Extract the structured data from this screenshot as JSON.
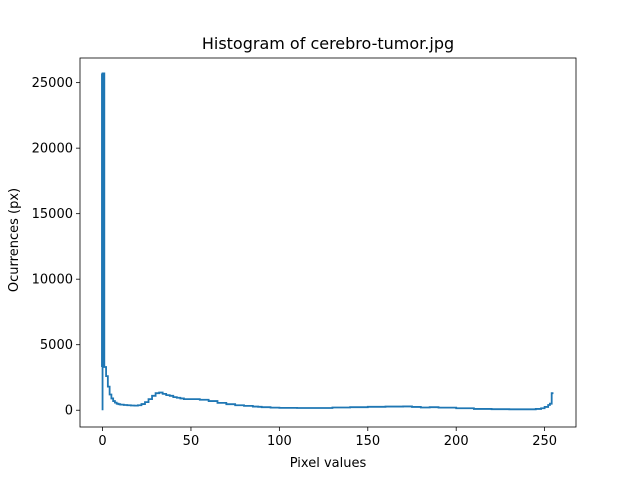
{
  "chart_data": {
    "type": "line",
    "style": "step-histogram",
    "title": "Histogram of cerebro-tumor.jpg",
    "xlabel": "Pixel values",
    "ylabel": "Ocurrences (px)",
    "xlim": [
      -12.75,
      267.75
    ],
    "ylim": [
      -1280,
      26880
    ],
    "xticks": [
      0,
      50,
      100,
      150,
      200,
      250
    ],
    "yticks": [
      0,
      5000,
      10000,
      15000,
      20000,
      25000
    ],
    "grid": false,
    "series_color": "#1f77b4",
    "points": [
      [
        0,
        25700
      ],
      [
        1,
        3300
      ],
      [
        2,
        2600
      ],
      [
        3,
        1800
      ],
      [
        4,
        1200
      ],
      [
        5,
        900
      ],
      [
        6,
        700
      ],
      [
        7,
        580
      ],
      [
        8,
        500
      ],
      [
        9,
        460
      ],
      [
        10,
        430
      ],
      [
        12,
        400
      ],
      [
        14,
        380
      ],
      [
        16,
        360
      ],
      [
        18,
        350
      ],
      [
        20,
        380
      ],
      [
        22,
        470
      ],
      [
        24,
        620
      ],
      [
        26,
        850
      ],
      [
        28,
        1100
      ],
      [
        30,
        1300
      ],
      [
        32,
        1350
      ],
      [
        34,
        1250
      ],
      [
        36,
        1150
      ],
      [
        38,
        1100
      ],
      [
        40,
        1000
      ],
      [
        42,
        950
      ],
      [
        44,
        900
      ],
      [
        46,
        850
      ],
      [
        50,
        850
      ],
      [
        55,
        800
      ],
      [
        60,
        700
      ],
      [
        65,
        560
      ],
      [
        70,
        460
      ],
      [
        75,
        380
      ],
      [
        80,
        330
      ],
      [
        85,
        280
      ],
      [
        88,
        260
      ],
      [
        90,
        230
      ],
      [
        95,
        200
      ],
      [
        100,
        180
      ],
      [
        110,
        170
      ],
      [
        120,
        170
      ],
      [
        130,
        210
      ],
      [
        140,
        230
      ],
      [
        150,
        260
      ],
      [
        160,
        280
      ],
      [
        170,
        290
      ],
      [
        175,
        250
      ],
      [
        180,
        210
      ],
      [
        185,
        230
      ],
      [
        190,
        200
      ],
      [
        200,
        150
      ],
      [
        210,
        100
      ],
      [
        220,
        80
      ],
      [
        230,
        70
      ],
      [
        240,
        70
      ],
      [
        245,
        100
      ],
      [
        248,
        150
      ],
      [
        250,
        250
      ],
      [
        252,
        400
      ],
      [
        253,
        500
      ],
      [
        254,
        1300
      ],
      [
        255,
        1300
      ]
    ]
  }
}
